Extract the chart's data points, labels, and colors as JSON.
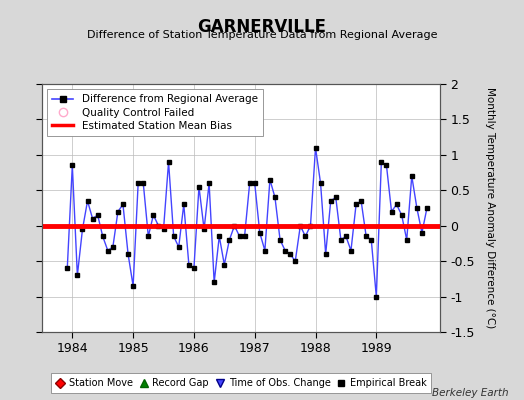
{
  "title": "GARNERVILLE",
  "subtitle": "Difference of Station Temperature Data from Regional Average",
  "ylabel": "Monthly Temperature Anomaly Difference (°C)",
  "credit": "Berkeley Earth",
  "bias": 0.0,
  "ylim": [
    -1.5,
    2.0
  ],
  "xlim": [
    1983.5,
    1990.05
  ],
  "xticks": [
    1984,
    1985,
    1986,
    1987,
    1988,
    1989
  ],
  "yticks": [
    -1.5,
    -1.0,
    -0.5,
    0.0,
    0.5,
    1.0,
    1.5,
    2.0
  ],
  "bg_color": "#d8d8d8",
  "plot_bg_color": "#ffffff",
  "line_color": "#4444ff",
  "marker_color": "#000000",
  "bias_color": "#ff0000",
  "data": [
    [
      1983.917,
      -0.6
    ],
    [
      1984.0,
      0.85
    ],
    [
      1984.083,
      -0.7
    ],
    [
      1984.167,
      -0.05
    ],
    [
      1984.25,
      0.35
    ],
    [
      1984.333,
      0.1
    ],
    [
      1984.417,
      0.15
    ],
    [
      1984.5,
      -0.15
    ],
    [
      1984.583,
      -0.35
    ],
    [
      1984.667,
      -0.3
    ],
    [
      1984.75,
      0.2
    ],
    [
      1984.833,
      0.3
    ],
    [
      1984.917,
      -0.4
    ],
    [
      1985.0,
      -0.85
    ],
    [
      1985.083,
      0.6
    ],
    [
      1985.167,
      0.6
    ],
    [
      1985.25,
      -0.15
    ],
    [
      1985.333,
      0.15
    ],
    [
      1985.417,
      0.0
    ],
    [
      1985.5,
      -0.05
    ],
    [
      1985.583,
      0.9
    ],
    [
      1985.667,
      -0.15
    ],
    [
      1985.75,
      -0.3
    ],
    [
      1985.833,
      0.3
    ],
    [
      1985.917,
      -0.55
    ],
    [
      1986.0,
      -0.6
    ],
    [
      1986.083,
      0.55
    ],
    [
      1986.167,
      -0.05
    ],
    [
      1986.25,
      0.6
    ],
    [
      1986.333,
      -0.8
    ],
    [
      1986.417,
      -0.15
    ],
    [
      1986.5,
      -0.55
    ],
    [
      1986.583,
      -0.2
    ],
    [
      1986.667,
      0.0
    ],
    [
      1986.75,
      -0.15
    ],
    [
      1986.833,
      -0.15
    ],
    [
      1986.917,
      0.6
    ],
    [
      1987.0,
      0.6
    ],
    [
      1987.083,
      -0.1
    ],
    [
      1987.167,
      -0.35
    ],
    [
      1987.25,
      0.65
    ],
    [
      1987.333,
      0.4
    ],
    [
      1987.417,
      -0.2
    ],
    [
      1987.5,
      -0.35
    ],
    [
      1987.583,
      -0.4
    ],
    [
      1987.667,
      -0.5
    ],
    [
      1987.75,
      0.0
    ],
    [
      1987.833,
      -0.15
    ],
    [
      1987.917,
      0.0
    ],
    [
      1988.0,
      1.1
    ],
    [
      1988.083,
      0.6
    ],
    [
      1988.167,
      -0.4
    ],
    [
      1988.25,
      0.35
    ],
    [
      1988.333,
      0.4
    ],
    [
      1988.417,
      -0.2
    ],
    [
      1988.5,
      -0.15
    ],
    [
      1988.583,
      -0.35
    ],
    [
      1988.667,
      0.3
    ],
    [
      1988.75,
      0.35
    ],
    [
      1988.833,
      -0.15
    ],
    [
      1988.917,
      -0.2
    ],
    [
      1989.0,
      -1.0
    ],
    [
      1989.083,
      0.9
    ],
    [
      1989.167,
      0.85
    ],
    [
      1989.25,
      0.2
    ],
    [
      1989.333,
      0.3
    ],
    [
      1989.417,
      0.15
    ],
    [
      1989.5,
      -0.2
    ],
    [
      1989.583,
      0.7
    ],
    [
      1989.667,
      0.25
    ],
    [
      1989.75,
      -0.1
    ],
    [
      1989.833,
      0.25
    ]
  ]
}
